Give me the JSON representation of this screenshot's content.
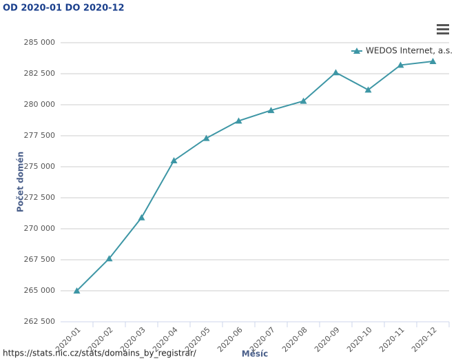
{
  "chart_data": {
    "type": "line",
    "title": "OD 2020-01 DO 2020-12",
    "x_label": "Měsíc",
    "y_label": "Počet domén",
    "source": "https://stats.nic.cz/stats/domains_by_registrar/",
    "categories": [
      "2020-01",
      "2020-02",
      "2020-03",
      "2020-04",
      "2020-05",
      "2020-06",
      "2020-07",
      "2020-08",
      "2020-09",
      "2020-10",
      "2020-11",
      "2020-12"
    ],
    "series": [
      {
        "name": "WEDOS Internet, a.s.",
        "color": "#3d96a5",
        "values": [
          265000,
          267600,
          270900,
          275500,
          277300,
          278700,
          279550,
          280300,
          282600,
          281200,
          283200,
          283500
        ]
      }
    ],
    "ylim": [
      262500,
      285000
    ],
    "yticks": [
      {
        "value": 262500,
        "label": "262 500"
      },
      {
        "value": 265000,
        "label": "265 000"
      },
      {
        "value": 267500,
        "label": "267 500"
      },
      {
        "value": 270000,
        "label": "270 000"
      },
      {
        "value": 272500,
        "label": "272 500"
      },
      {
        "value": 275000,
        "label": "275 000"
      },
      {
        "value": 277500,
        "label": "277 500"
      },
      {
        "value": 280000,
        "label": "280 000"
      },
      {
        "value": 282500,
        "label": "282 500"
      },
      {
        "value": 285000,
        "label": "285 000"
      }
    ],
    "grid": true,
    "legend": "top-right"
  }
}
